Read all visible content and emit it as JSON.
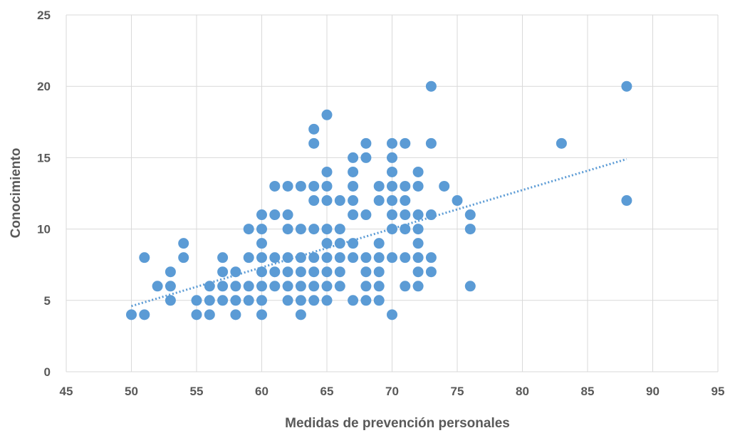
{
  "chart_data": {
    "type": "scatter",
    "title": "",
    "xlabel": "Medidas de prevención personales",
    "ylabel": "Conocimiento",
    "xlim": [
      45,
      95
    ],
    "ylim": [
      0,
      25
    ],
    "xticks": [
      45,
      50,
      55,
      60,
      65,
      70,
      75,
      80,
      85,
      90,
      95
    ],
    "yticks": [
      0,
      5,
      10,
      15,
      20,
      25
    ],
    "grid": true,
    "legend": "none",
    "point_color": "#5b9bd5",
    "trendline": {
      "type": "linear",
      "style": "dotted",
      "color": "#5b9bd5",
      "points": [
        [
          50,
          4.6
        ],
        [
          88,
          14.9
        ]
      ]
    },
    "points": [
      [
        50,
        4
      ],
      [
        51,
        4
      ],
      [
        51,
        8
      ],
      [
        52,
        6
      ],
      [
        53,
        5
      ],
      [
        53,
        6
      ],
      [
        53,
        7
      ],
      [
        54,
        8
      ],
      [
        54,
        9
      ],
      [
        55,
        4
      ],
      [
        55,
        5
      ],
      [
        56,
        4
      ],
      [
        56,
        5
      ],
      [
        56,
        6
      ],
      [
        57,
        5
      ],
      [
        57,
        6
      ],
      [
        57,
        7
      ],
      [
        57,
        8
      ],
      [
        58,
        4
      ],
      [
        58,
        5
      ],
      [
        58,
        6
      ],
      [
        58,
        7
      ],
      [
        59,
        5
      ],
      [
        59,
        6
      ],
      [
        59,
        8
      ],
      [
        59,
        10
      ],
      [
        60,
        4
      ],
      [
        60,
        5
      ],
      [
        60,
        6
      ],
      [
        60,
        7
      ],
      [
        60,
        8
      ],
      [
        60,
        9
      ],
      [
        60,
        10
      ],
      [
        60,
        11
      ],
      [
        61,
        6
      ],
      [
        61,
        7
      ],
      [
        61,
        8
      ],
      [
        61,
        11
      ],
      [
        61,
        13
      ],
      [
        62,
        5
      ],
      [
        62,
        6
      ],
      [
        62,
        7
      ],
      [
        62,
        8
      ],
      [
        62,
        10
      ],
      [
        62,
        11
      ],
      [
        62,
        13
      ],
      [
        63,
        4
      ],
      [
        63,
        5
      ],
      [
        63,
        6
      ],
      [
        63,
        7
      ],
      [
        63,
        8
      ],
      [
        63,
        10
      ],
      [
        63,
        13
      ],
      [
        64,
        5
      ],
      [
        64,
        6
      ],
      [
        64,
        7
      ],
      [
        64,
        8
      ],
      [
        64,
        10
      ],
      [
        64,
        12
      ],
      [
        64,
        13
      ],
      [
        64,
        16
      ],
      [
        64,
        17
      ],
      [
        65,
        5
      ],
      [
        65,
        6
      ],
      [
        65,
        7
      ],
      [
        65,
        8
      ],
      [
        65,
        9
      ],
      [
        65,
        10
      ],
      [
        65,
        12
      ],
      [
        65,
        13
      ],
      [
        65,
        14
      ],
      [
        65,
        18
      ],
      [
        66,
        6
      ],
      [
        66,
        7
      ],
      [
        66,
        8
      ],
      [
        66,
        9
      ],
      [
        66,
        10
      ],
      [
        66,
        12
      ],
      [
        67,
        5
      ],
      [
        67,
        8
      ],
      [
        67,
        9
      ],
      [
        67,
        11
      ],
      [
        67,
        12
      ],
      [
        67,
        13
      ],
      [
        67,
        14
      ],
      [
        67,
        15
      ],
      [
        68,
        5
      ],
      [
        68,
        6
      ],
      [
        68,
        7
      ],
      [
        68,
        8
      ],
      [
        68,
        11
      ],
      [
        68,
        15
      ],
      [
        68,
        16
      ],
      [
        69,
        5
      ],
      [
        69,
        6
      ],
      [
        69,
        7
      ],
      [
        69,
        8
      ],
      [
        69,
        9
      ],
      [
        69,
        12
      ],
      [
        69,
        13
      ],
      [
        70,
        4
      ],
      [
        70,
        8
      ],
      [
        70,
        10
      ],
      [
        70,
        11
      ],
      [
        70,
        12
      ],
      [
        70,
        13
      ],
      [
        70,
        14
      ],
      [
        70,
        15
      ],
      [
        70,
        16
      ],
      [
        71,
        6
      ],
      [
        71,
        8
      ],
      [
        71,
        10
      ],
      [
        71,
        11
      ],
      [
        71,
        12
      ],
      [
        71,
        13
      ],
      [
        71,
        16
      ],
      [
        72,
        6
      ],
      [
        72,
        7
      ],
      [
        72,
        8
      ],
      [
        72,
        9
      ],
      [
        72,
        10
      ],
      [
        72,
        11
      ],
      [
        72,
        13
      ],
      [
        72,
        14
      ],
      [
        73,
        7
      ],
      [
        73,
        8
      ],
      [
        73,
        11
      ],
      [
        73,
        16
      ],
      [
        73,
        20
      ],
      [
        74,
        13
      ],
      [
        75,
        12
      ],
      [
        76,
        6
      ],
      [
        76,
        10
      ],
      [
        76,
        11
      ],
      [
        83,
        16
      ],
      [
        88,
        12
      ],
      [
        88,
        20
      ]
    ]
  }
}
